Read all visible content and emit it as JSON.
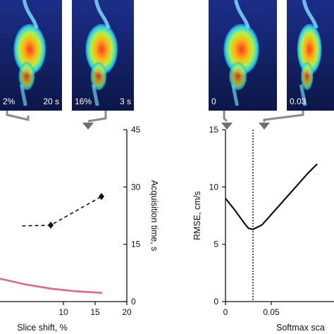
{
  "chart_data": [
    {
      "type": "line",
      "xlabel": "Slice shift, %",
      "y2label": "Acquisition time, s",
      "xlim": [
        0,
        20
      ],
      "y2lim": [
        0,
        45
      ],
      "x_ticks": [
        "10",
        "15",
        "20"
      ],
      "y2_ticks": [
        "0",
        "15",
        "30",
        "45"
      ],
      "series": [
        {
          "style": "dashed-black-diamond",
          "axis": "right",
          "x": [
            8,
            16
          ],
          "y": [
            20,
            27.5
          ],
          "line_from_x": 3.5
        },
        {
          "style": "solid-pink",
          "axis": "right",
          "x": [
            0,
            4,
            8,
            12,
            16
          ],
          "y": [
            6,
            4.5,
            3.4,
            2.7,
            2.3
          ]
        }
      ],
      "colors": {
        "dashed": "#111111",
        "pink": "#e8647e"
      },
      "thumbnails": [
        {
          "left_label": "2%",
          "right_label": "20 s"
        },
        {
          "left_label": "16%",
          "right_label": "3 s"
        }
      ]
    },
    {
      "type": "line",
      "xlabel": "Softmax sca",
      "ylabel": "RMSE, cm/s",
      "xlim": [
        0,
        0.1
      ],
      "ylim": [
        0,
        15
      ],
      "x_ticks": [
        "0",
        "0.05"
      ],
      "y_ticks": [
        "0",
        "5",
        "10",
        "15"
      ],
      "vertical_line_x": 0.03,
      "series": [
        {
          "style": "solid-black",
          "x": [
            0,
            0.01,
            0.02,
            0.025,
            0.03,
            0.04,
            0.05,
            0.06,
            0.07,
            0.08,
            0.09,
            0.1
          ],
          "y": [
            9.0,
            8.0,
            6.9,
            6.4,
            6.3,
            6.7,
            7.6,
            8.5,
            9.4,
            10.3,
            11.2,
            12.0
          ]
        }
      ],
      "thumbnails": [
        {
          "left_label": "0",
          "right_label": ""
        },
        {
          "left_label": "0.03",
          "right_label": ""
        }
      ]
    }
  ]
}
